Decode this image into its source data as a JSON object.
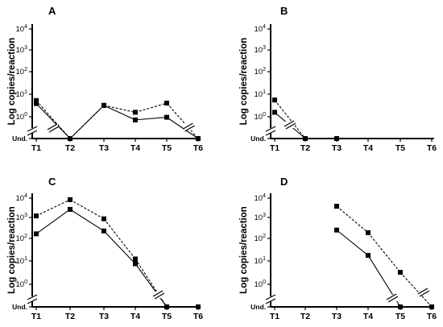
{
  "chart_data": [
    {
      "type": "line",
      "panel": "A",
      "ylabel": "Log copies/reaction",
      "x": [
        "T1",
        "T2",
        "T3",
        "T4",
        "T5",
        "T6"
      ],
      "y_ticks": [
        "Und.",
        "10^0",
        "10^1",
        "10^2",
        "10^3",
        "10^4"
      ],
      "y_scale": "log",
      "ylim": [
        "Und.",
        10000
      ],
      "series": [
        {
          "style": "dashed",
          "values": [
            5.5,
            "Und.",
            3.3,
            1.6,
            4.2,
            "Und."
          ]
        },
        {
          "style": "solid",
          "values": [
            4.0,
            "Und.",
            3.3,
            0.72,
            0.95,
            "Und."
          ]
        }
      ],
      "axis_breaks": [
        "T2",
        "T6"
      ]
    },
    {
      "type": "line",
      "panel": "B",
      "ylabel": "Log copies/reaction",
      "x": [
        "T1",
        "T2",
        "T3",
        "T4",
        "T5",
        "T6"
      ],
      "y_ticks": [
        "Und.",
        "10^0",
        "10^1",
        "10^2",
        "10^3",
        "10^4"
      ],
      "y_scale": "log",
      "ylim": [
        "Und.",
        10000
      ],
      "series": [
        {
          "style": "dashed",
          "values": [
            5.8,
            "Und.",
            "Und.",
            null,
            null,
            null
          ]
        },
        {
          "style": "solid",
          "values": [
            1.6,
            "Und.",
            "Und.",
            null,
            null,
            null
          ]
        }
      ],
      "axis_breaks": [
        "T2"
      ]
    },
    {
      "type": "line",
      "panel": "C",
      "ylabel": "Log copies/reaction",
      "x": [
        "T1",
        "T2",
        "T3",
        "T4",
        "T5",
        "T6"
      ],
      "y_ticks": [
        "Und.",
        "10^0",
        "10^1",
        "10^2",
        "10^3",
        "10^4"
      ],
      "y_scale": "log",
      "ylim": [
        "Und.",
        10000
      ],
      "series": [
        {
          "style": "dashed",
          "values": [
            1500,
            8500,
            1100,
            15,
            "Und.",
            "Und."
          ]
        },
        {
          "style": "solid",
          "values": [
            220,
            3000,
            300,
            9,
            "Und.",
            "Und."
          ]
        }
      ],
      "axis_breaks": [
        "T5"
      ]
    },
    {
      "type": "line",
      "panel": "D",
      "ylabel": "Log copies/reaction",
      "x": [
        "T1",
        "T2",
        "T3",
        "T4",
        "T5",
        "T6"
      ],
      "y_ticks": [
        "Und.",
        "10^0",
        "10^1",
        "10^2",
        "10^3",
        "10^4"
      ],
      "y_scale": "log",
      "ylim": [
        "Und.",
        10000
      ],
      "series": [
        {
          "style": "dashed",
          "values": [
            null,
            null,
            4200,
            250,
            3.6,
            "Und."
          ]
        },
        {
          "style": "solid",
          "values": [
            null,
            null,
            330,
            22,
            "Und.",
            null
          ]
        }
      ],
      "axis_breaks": [
        "T5",
        "T6"
      ]
    }
  ]
}
